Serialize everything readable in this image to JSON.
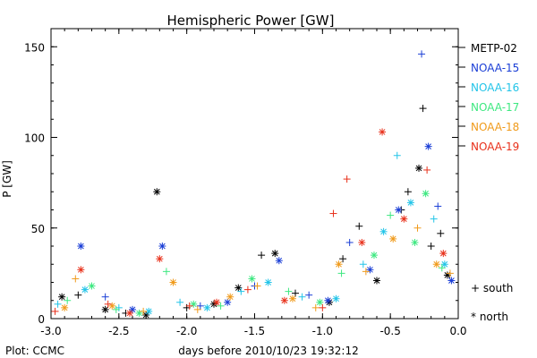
{
  "chart_data": {
    "type": "scatter",
    "title": "Hemispheric Power [GW]",
    "xlabel": "days before 2010/10/23 19:32:12",
    "ylabel": "P [GW]",
    "footer": "Plot: CCMC",
    "xlim": [
      -3.0,
      0.0
    ],
    "ylim": [
      0,
      160
    ],
    "x_ticks": [
      "-3.0",
      "-2.5",
      "-2.0",
      "-1.5",
      "-1.0",
      "-0.5",
      "0.0"
    ],
    "y_ticks": [
      "0",
      "50",
      "100",
      "150"
    ],
    "marker_legend": {
      "plus": "+ south",
      "star": "* north"
    },
    "series": [
      {
        "name": "METP-02",
        "color": "#000000",
        "points": [
          {
            "x": -2.92,
            "y": 12,
            "m": "star"
          },
          {
            "x": -2.8,
            "y": 13,
            "m": "plus"
          },
          {
            "x": -2.6,
            "y": 5,
            "m": "star"
          },
          {
            "x": -2.45,
            "y": 3,
            "m": "plus"
          },
          {
            "x": -2.3,
            "y": 2,
            "m": "star"
          },
          {
            "x": -2.22,
            "y": 70,
            "m": "star"
          },
          {
            "x": -2.0,
            "y": 6,
            "m": "plus"
          },
          {
            "x": -1.8,
            "y": 8,
            "m": "star"
          },
          {
            "x": -1.62,
            "y": 17,
            "m": "star"
          },
          {
            "x": -1.45,
            "y": 35,
            "m": "plus"
          },
          {
            "x": -1.35,
            "y": 36,
            "m": "star"
          },
          {
            "x": -1.2,
            "y": 14,
            "m": "plus"
          },
          {
            "x": -0.95,
            "y": 9,
            "m": "star"
          },
          {
            "x": -0.85,
            "y": 33,
            "m": "plus"
          },
          {
            "x": -0.73,
            "y": 51,
            "m": "plus"
          },
          {
            "x": -0.6,
            "y": 21,
            "m": "star"
          },
          {
            "x": -0.42,
            "y": 60,
            "m": "plus"
          },
          {
            "x": -0.37,
            "y": 70,
            "m": "plus"
          },
          {
            "x": -0.29,
            "y": 83,
            "m": "star"
          },
          {
            "x": -0.26,
            "y": 116,
            "m": "plus"
          },
          {
            "x": -0.2,
            "y": 40,
            "m": "plus"
          },
          {
            "x": -0.13,
            "y": 47,
            "m": "plus"
          },
          {
            "x": -0.08,
            "y": 24,
            "m": "star"
          }
        ]
      },
      {
        "name": "NOAA-15",
        "color": "#1a3ed6",
        "points": [
          {
            "x": -2.78,
            "y": 40,
            "m": "star"
          },
          {
            "x": -2.6,
            "y": 12,
            "m": "plus"
          },
          {
            "x": -2.4,
            "y": 5,
            "m": "star"
          },
          {
            "x": -2.18,
            "y": 40,
            "m": "star"
          },
          {
            "x": -1.9,
            "y": 7,
            "m": "plus"
          },
          {
            "x": -1.7,
            "y": 9,
            "m": "star"
          },
          {
            "x": -1.5,
            "y": 18,
            "m": "plus"
          },
          {
            "x": -1.32,
            "y": 32,
            "m": "star"
          },
          {
            "x": -1.1,
            "y": 13,
            "m": "plus"
          },
          {
            "x": -0.96,
            "y": 10,
            "m": "star"
          },
          {
            "x": -0.8,
            "y": 42,
            "m": "plus"
          },
          {
            "x": -0.65,
            "y": 27,
            "m": "star"
          },
          {
            "x": -0.44,
            "y": 60,
            "m": "star"
          },
          {
            "x": -0.27,
            "y": 146,
            "m": "plus"
          },
          {
            "x": -0.22,
            "y": 95,
            "m": "star"
          },
          {
            "x": -0.15,
            "y": 62,
            "m": "plus"
          },
          {
            "x": -0.05,
            "y": 21,
            "m": "star"
          }
        ]
      },
      {
        "name": "NOAA-16",
        "color": "#22c4e8",
        "points": [
          {
            "x": -2.95,
            "y": 8,
            "m": "plus"
          },
          {
            "x": -2.75,
            "y": 16,
            "m": "star"
          },
          {
            "x": -2.5,
            "y": 6,
            "m": "plus"
          },
          {
            "x": -2.28,
            "y": 4,
            "m": "star"
          },
          {
            "x": -2.05,
            "y": 9,
            "m": "plus"
          },
          {
            "x": -1.85,
            "y": 6,
            "m": "star"
          },
          {
            "x": -1.6,
            "y": 15,
            "m": "plus"
          },
          {
            "x": -1.4,
            "y": 20,
            "m": "star"
          },
          {
            "x": -1.15,
            "y": 12,
            "m": "plus"
          },
          {
            "x": -0.9,
            "y": 11,
            "m": "star"
          },
          {
            "x": -0.7,
            "y": 30,
            "m": "plus"
          },
          {
            "x": -0.55,
            "y": 48,
            "m": "star"
          },
          {
            "x": -0.45,
            "y": 90,
            "m": "plus"
          },
          {
            "x": -0.35,
            "y": 64,
            "m": "star"
          },
          {
            "x": -0.18,
            "y": 55,
            "m": "plus"
          },
          {
            "x": -0.1,
            "y": 30,
            "m": "star"
          }
        ]
      },
      {
        "name": "NOAA-17",
        "color": "#3de880",
        "points": [
          {
            "x": -2.88,
            "y": 10,
            "m": "plus"
          },
          {
            "x": -2.7,
            "y": 18,
            "m": "star"
          },
          {
            "x": -2.52,
            "y": 5,
            "m": "plus"
          },
          {
            "x": -2.35,
            "y": 3,
            "m": "star"
          },
          {
            "x": -2.15,
            "y": 26,
            "m": "plus"
          },
          {
            "x": -1.95,
            "y": 8,
            "m": "star"
          },
          {
            "x": -1.75,
            "y": 7,
            "m": "plus"
          },
          {
            "x": -1.52,
            "y": 22,
            "m": "star"
          },
          {
            "x": -1.25,
            "y": 15,
            "m": "plus"
          },
          {
            "x": -1.02,
            "y": 9,
            "m": "star"
          },
          {
            "x": -0.86,
            "y": 25,
            "m": "plus"
          },
          {
            "x": -0.62,
            "y": 35,
            "m": "star"
          },
          {
            "x": -0.5,
            "y": 57,
            "m": "plus"
          },
          {
            "x": -0.32,
            "y": 42,
            "m": "star"
          },
          {
            "x": -0.24,
            "y": 69,
            "m": "star"
          },
          {
            "x": -0.12,
            "y": 28,
            "m": "plus"
          }
        ]
      },
      {
        "name": "NOAA-18",
        "color": "#f09a1a",
        "points": [
          {
            "x": -2.9,
            "y": 6,
            "m": "star"
          },
          {
            "x": -2.82,
            "y": 22,
            "m": "plus"
          },
          {
            "x": -2.55,
            "y": 7,
            "m": "star"
          },
          {
            "x": -2.32,
            "y": 4,
            "m": "plus"
          },
          {
            "x": -2.1,
            "y": 20,
            "m": "star"
          },
          {
            "x": -1.92,
            "y": 5,
            "m": "plus"
          },
          {
            "x": -1.68,
            "y": 12,
            "m": "star"
          },
          {
            "x": -1.48,
            "y": 18,
            "m": "plus"
          },
          {
            "x": -1.22,
            "y": 11,
            "m": "star"
          },
          {
            "x": -1.05,
            "y": 6,
            "m": "plus"
          },
          {
            "x": -0.88,
            "y": 30,
            "m": "star"
          },
          {
            "x": -0.68,
            "y": 26,
            "m": "plus"
          },
          {
            "x": -0.48,
            "y": 44,
            "m": "star"
          },
          {
            "x": -0.3,
            "y": 50,
            "m": "plus"
          },
          {
            "x": -0.16,
            "y": 30,
            "m": "star"
          },
          {
            "x": -0.06,
            "y": 25,
            "m": "plus"
          }
        ]
      },
      {
        "name": "NOAA-19",
        "color": "#e8301a",
        "points": [
          {
            "x": -2.97,
            "y": 4,
            "m": "plus"
          },
          {
            "x": -2.78,
            "y": 27,
            "m": "star"
          },
          {
            "x": -2.58,
            "y": 8,
            "m": "plus"
          },
          {
            "x": -2.42,
            "y": 3,
            "m": "star"
          },
          {
            "x": -2.2,
            "y": 33,
            "m": "star"
          },
          {
            "x": -1.98,
            "y": 7,
            "m": "plus"
          },
          {
            "x": -1.78,
            "y": 9,
            "m": "star"
          },
          {
            "x": -1.55,
            "y": 16,
            "m": "plus"
          },
          {
            "x": -1.28,
            "y": 10,
            "m": "star"
          },
          {
            "x": -1.0,
            "y": 6,
            "m": "plus"
          },
          {
            "x": -0.92,
            "y": 58,
            "m": "plus"
          },
          {
            "x": -0.82,
            "y": 77,
            "m": "plus"
          },
          {
            "x": -0.71,
            "y": 42,
            "m": "star"
          },
          {
            "x": -0.56,
            "y": 103,
            "m": "star"
          },
          {
            "x": -0.4,
            "y": 55,
            "m": "star"
          },
          {
            "x": -0.23,
            "y": 82,
            "m": "plus"
          },
          {
            "x": -0.11,
            "y": 36,
            "m": "star"
          }
        ]
      }
    ]
  }
}
